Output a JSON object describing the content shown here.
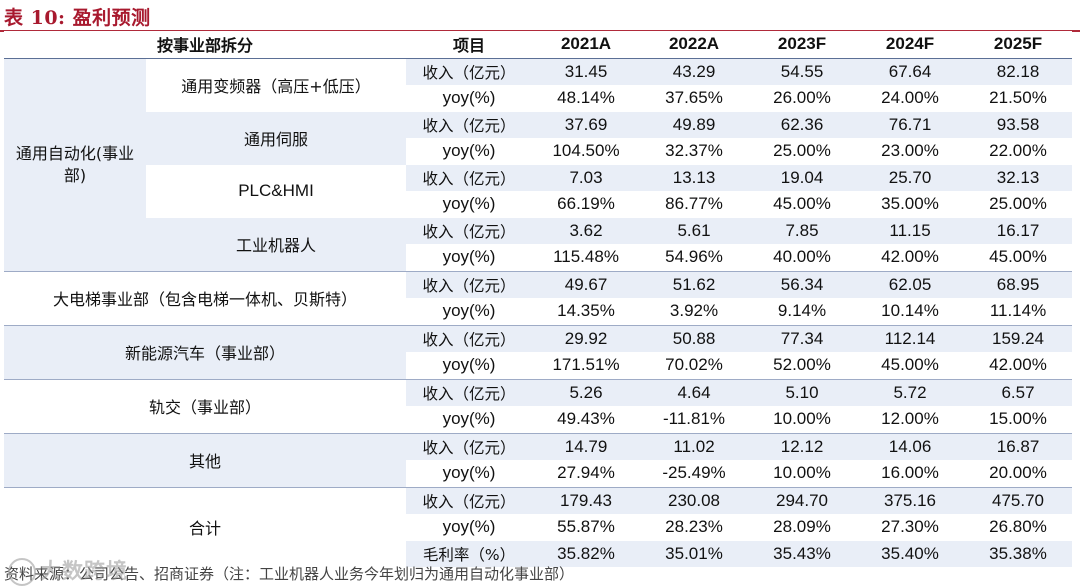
{
  "title": "表 10:  盈利预测",
  "header": {
    "segment": "按事业部拆分",
    "item": "项目",
    "years": [
      "2021A",
      "2022A",
      "2023F",
      "2024F",
      "2025F"
    ]
  },
  "groups": [
    {
      "segment": "通用自动化(事业部)",
      "subs": [
        {
          "name": "通用变频器（高压+低压）",
          "rows": [
            {
              "item": "收入（亿元）",
              "values": [
                "31.45",
                "43.29",
                "54.55",
                "67.64",
                "82.18"
              ]
            },
            {
              "item": "yoy(%)",
              "values": [
                "48.14%",
                "37.65%",
                "26.00%",
                "24.00%",
                "21.50%"
              ]
            }
          ]
        },
        {
          "name": "通用伺服",
          "rows": [
            {
              "item": "收入（亿元）",
              "values": [
                "37.69",
                "49.89",
                "62.36",
                "76.71",
                "93.58"
              ]
            },
            {
              "item": "yoy(%)",
              "values": [
                "104.50%",
                "32.37%",
                "25.00%",
                "23.00%",
                "22.00%"
              ]
            }
          ]
        },
        {
          "name": "PLC&HMI",
          "rows": [
            {
              "item": "收入（亿元）",
              "values": [
                "7.03",
                "13.13",
                "19.04",
                "25.70",
                "32.13"
              ]
            },
            {
              "item": "yoy(%)",
              "values": [
                "66.19%",
                "86.77%",
                "45.00%",
                "35.00%",
                "25.00%"
              ]
            }
          ]
        },
        {
          "name": "工业机器人",
          "rows": [
            {
              "item": "收入（亿元）",
              "values": [
                "3.62",
                "5.61",
                "7.85",
                "11.15",
                "16.17"
              ]
            },
            {
              "item": "yoy(%)",
              "values": [
                "115.48%",
                "54.96%",
                "40.00%",
                "42.00%",
                "45.00%"
              ]
            }
          ]
        }
      ]
    },
    {
      "segment": "大电梯事业部（包含电梯一体机、贝斯特）",
      "rows": [
        {
          "item": "收入（亿元）",
          "values": [
            "49.67",
            "51.62",
            "56.34",
            "62.05",
            "68.95"
          ]
        },
        {
          "item": "yoy(%)",
          "values": [
            "14.35%",
            "3.92%",
            "9.14%",
            "10.14%",
            "11.14%"
          ]
        }
      ]
    },
    {
      "segment": "新能源汽车（事业部）",
      "rows": [
        {
          "item": "收入（亿元）",
          "values": [
            "29.92",
            "50.88",
            "77.34",
            "112.14",
            "159.24"
          ]
        },
        {
          "item": "yoy(%)",
          "values": [
            "171.51%",
            "70.02%",
            "52.00%",
            "45.00%",
            "42.00%"
          ]
        }
      ]
    },
    {
      "segment": "轨交（事业部）",
      "rows": [
        {
          "item": "收入（亿元）",
          "values": [
            "5.26",
            "4.64",
            "5.10",
            "5.72",
            "6.57"
          ]
        },
        {
          "item": "yoy(%)",
          "values": [
            "49.43%",
            "-11.81%",
            "10.00%",
            "12.00%",
            "15.00%"
          ]
        }
      ]
    },
    {
      "segment": "其他",
      "rows": [
        {
          "item": "收入（亿元）",
          "values": [
            "14.79",
            "11.02",
            "12.12",
            "14.06",
            "16.87"
          ]
        },
        {
          "item": "yoy(%)",
          "values": [
            "27.94%",
            "-25.49%",
            "10.00%",
            "16.00%",
            "20.00%"
          ]
        }
      ]
    },
    {
      "segment": "合计",
      "rows": [
        {
          "item": "收入（亿元）",
          "values": [
            "179.43",
            "230.08",
            "294.70",
            "375.16",
            "475.70"
          ]
        },
        {
          "item": "yoy(%)",
          "values": [
            "55.87%",
            "28.23%",
            "28.09%",
            "27.30%",
            "26.80%"
          ]
        },
        {
          "item": "毛利率（%）",
          "values": [
            "35.82%",
            "35.01%",
            "35.43%",
            "35.40%",
            "35.38%"
          ]
        }
      ]
    }
  ],
  "footer": "资料来源：公司公告、招商证券（注：工业机器人业务今年划归为通用自动化事业部）",
  "watermark": "大数跨境",
  "colors": {
    "title": "#a8192e",
    "shade": "#e9eef7",
    "rule": "#5b6f95"
  }
}
